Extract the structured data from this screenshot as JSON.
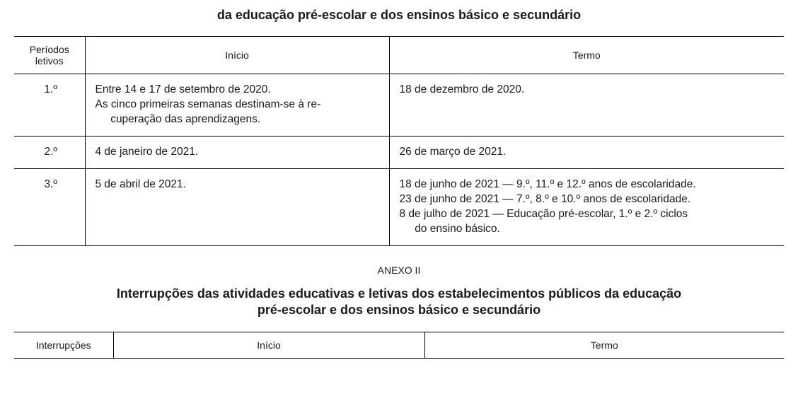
{
  "title1": "da educação pré-escolar e dos ensinos básico e secundário",
  "table1": {
    "columns": [
      "Períodos letivos",
      "Início",
      "Termo"
    ],
    "rows": [
      {
        "period": "1.º",
        "inicio_l1": "Entre 14 e 17 de setembro de 2020.",
        "inicio_l2": "As cinco primeiras semanas destinam-se à re-",
        "inicio_l3": "cuperação das aprendizagens.",
        "termo_l1": "18 de dezembro de 2020."
      },
      {
        "period": "2.º",
        "inicio_l1": "4 de janeiro de 2021.",
        "termo_l1": "26 de março de 2021."
      },
      {
        "period": "3.º",
        "inicio_l1": "5 de abril de 2021.",
        "termo_l1": "18 de junho de 2021 — 9.º, 11.º e 12.º anos de escolaridade.",
        "termo_l2": "23 de junho de 2021 — 7.º, 8.º e 10.º anos de escolaridade.",
        "termo_l3": "8 de julho de 2021 — Educação pré-escolar, 1.º e 2.º ciclos",
        "termo_l4": "do ensino básico."
      }
    ]
  },
  "anexo2": "ANEXO II",
  "title2_l1": "Interrupções das atividades educativas e letivas dos estabelecimentos públicos da educação",
  "title2_l2": "pré-escolar e dos ensinos básico e secundário",
  "table2": {
    "columns": [
      "Interrupções",
      "Início",
      "Termo"
    ]
  },
  "colors": {
    "text": "#1a1a1a",
    "border": "#000000",
    "background": "#ffffff"
  },
  "fonts": {
    "title_size": 18,
    "header_size": 14,
    "cell_size": 15.5,
    "anexo_size": 14
  }
}
